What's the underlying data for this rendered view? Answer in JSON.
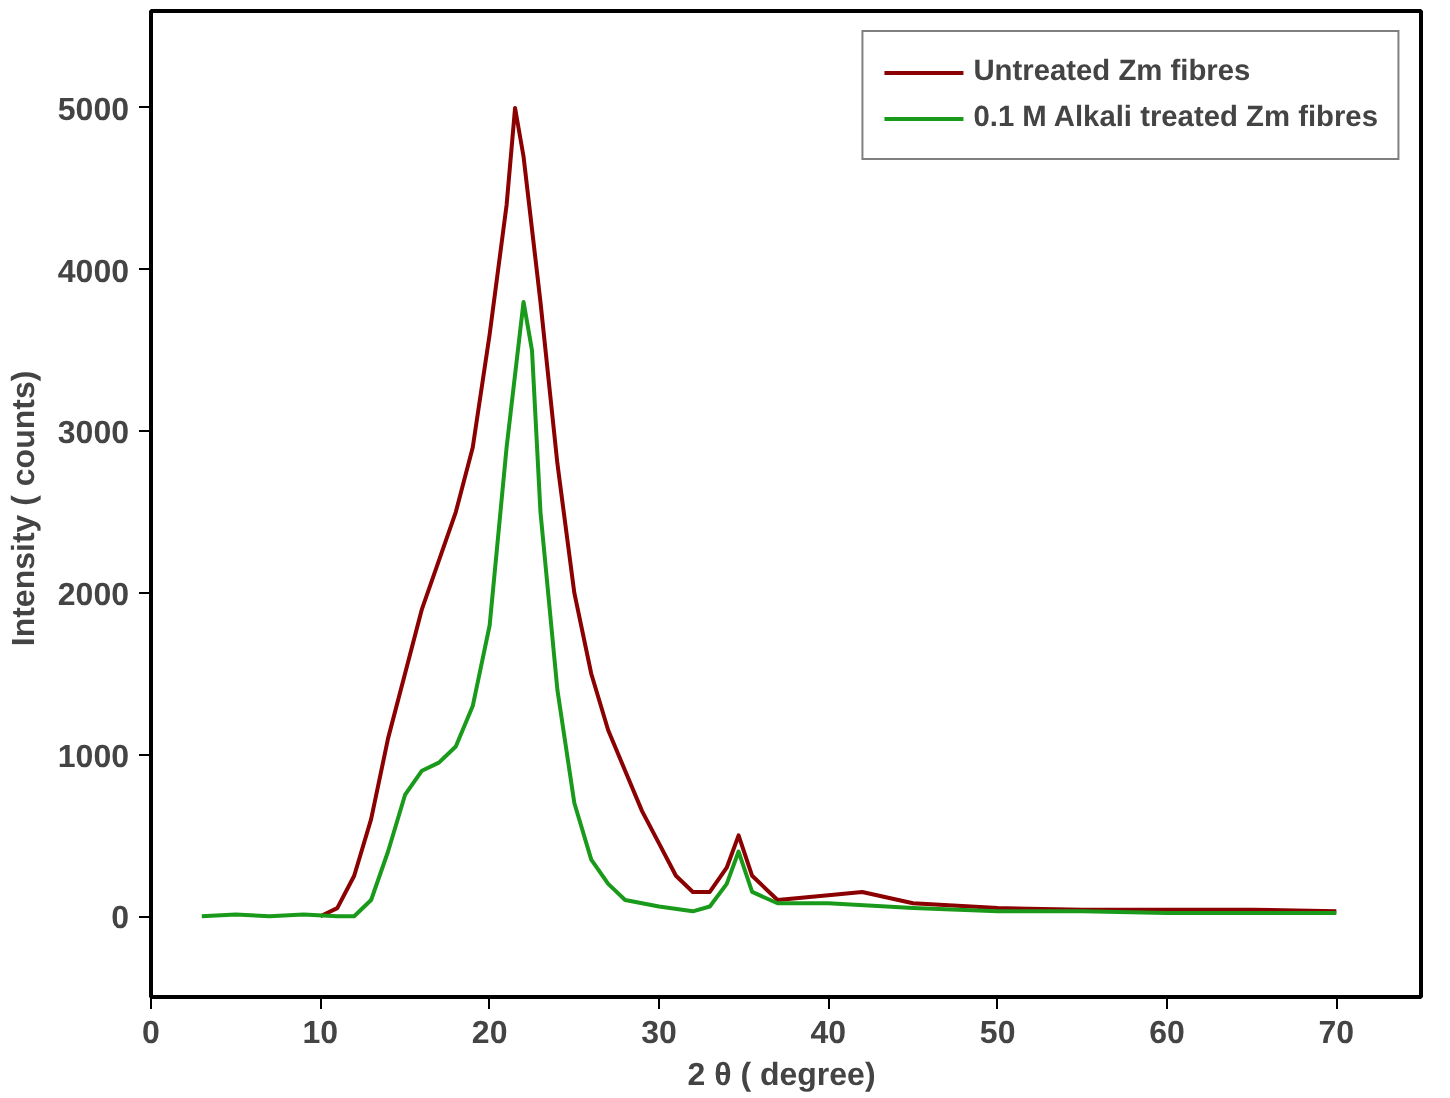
{
  "chart_data": {
    "type": "line",
    "xlabel": "2 θ (  degree)",
    "ylabel": "Intensity (  counts)",
    "xlim": [
      0,
      75
    ],
    "ylim": [
      -500,
      5600
    ],
    "xticks": [
      0,
      10,
      20,
      30,
      40,
      50,
      60,
      70
    ],
    "yticks": [
      0,
      1000,
      2000,
      3000,
      4000,
      5000
    ],
    "grid": false,
    "legend": "top right",
    "line_style": "solid",
    "series": [
      {
        "name": "Untreated Zm fibres",
        "color": "#8b0000",
        "x": [
          10,
          11,
          12,
          13,
          14,
          15,
          16,
          17,
          18,
          19,
          20,
          21,
          21.5,
          22,
          23,
          24,
          25,
          26,
          27,
          28,
          29,
          30,
          31,
          32,
          33,
          34,
          34.7,
          35.5,
          37,
          40,
          42,
          45,
          50,
          55,
          60,
          65,
          70
        ],
        "values": [
          0,
          50,
          250,
          600,
          1100,
          1500,
          1900,
          2200,
          2500,
          2900,
          3600,
          4400,
          5000,
          4700,
          3800,
          2800,
          2000,
          1500,
          1150,
          900,
          650,
          450,
          250,
          150,
          150,
          300,
          500,
          250,
          100,
          130,
          150,
          80,
          50,
          40,
          40,
          40,
          30
        ]
      },
      {
        "name": "0.1 M Alkali treated Zm fibres",
        "color": "#1a9a1a",
        "x": [
          3,
          5,
          7,
          9,
          11,
          12,
          13,
          14,
          15,
          16,
          17,
          18,
          19,
          20,
          21,
          22,
          22.5,
          23,
          24,
          25,
          26,
          27,
          28,
          30,
          32,
          33,
          34,
          34.7,
          35.5,
          37,
          40,
          45,
          50,
          55,
          60,
          65,
          70
        ],
        "values": [
          0,
          10,
          0,
          10,
          0,
          0,
          100,
          400,
          750,
          900,
          950,
          1050,
          1300,
          1800,
          2900,
          3800,
          3500,
          2500,
          1400,
          700,
          350,
          200,
          100,
          60,
          30,
          60,
          200,
          400,
          150,
          80,
          80,
          50,
          30,
          30,
          20,
          20,
          20
        ]
      }
    ]
  }
}
